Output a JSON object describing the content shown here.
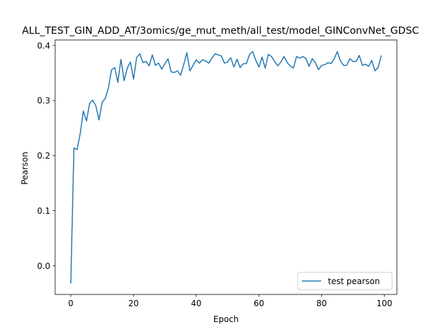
{
  "chart_data": {
    "type": "line",
    "title": "ALL_TEST_GIN_ADD_AT/3omics/ge_mut_meth/all_test/model_GINConvNet_GDSC",
    "xlabel": "Epoch",
    "ylabel": "Pearson",
    "xlim": [
      -5,
      104
    ],
    "ylim": [
      -0.052,
      0.41
    ],
    "xticks": [
      0,
      20,
      40,
      60,
      80,
      100
    ],
    "xtick_labels": [
      "0",
      "20",
      "40",
      "60",
      "80",
      "100"
    ],
    "yticks": [
      0.0,
      0.1,
      0.2,
      0.3,
      0.4
    ],
    "ytick_labels": [
      "0.0",
      "0.1",
      "0.2",
      "0.3",
      "0.4"
    ],
    "grid": false,
    "legend_position": "lower-right",
    "series": [
      {
        "name": "test pearson",
        "color": "#1f77b4",
        "x": [
          0,
          1,
          2,
          3,
          4,
          5,
          6,
          7,
          8,
          9,
          10,
          11,
          12,
          13,
          14,
          15,
          16,
          17,
          18,
          19,
          20,
          21,
          22,
          23,
          24,
          25,
          26,
          27,
          28,
          29,
          30,
          31,
          32,
          33,
          34,
          35,
          36,
          37,
          38,
          39,
          40,
          41,
          42,
          43,
          44,
          45,
          46,
          47,
          48,
          49,
          50,
          51,
          52,
          53,
          54,
          55,
          56,
          57,
          58,
          59,
          60,
          61,
          62,
          63,
          64,
          65,
          66,
          67,
          68,
          69,
          70,
          71,
          72,
          73,
          74,
          75,
          76,
          77,
          78,
          79,
          80,
          81,
          82,
          83,
          84,
          85,
          86,
          87,
          88,
          89,
          90,
          91,
          92,
          93,
          94,
          95,
          96,
          97,
          98,
          99
        ],
        "values": [
          -0.031,
          0.214,
          0.211,
          0.24,
          0.281,
          0.263,
          0.295,
          0.301,
          0.29,
          0.265,
          0.297,
          0.304,
          0.323,
          0.356,
          0.36,
          0.333,
          0.375,
          0.336,
          0.359,
          0.37,
          0.339,
          0.378,
          0.385,
          0.369,
          0.371,
          0.363,
          0.383,
          0.364,
          0.368,
          0.357,
          0.367,
          0.376,
          0.352,
          0.351,
          0.354,
          0.346,
          0.365,
          0.387,
          0.354,
          0.364,
          0.374,
          0.368,
          0.374,
          0.372,
          0.368,
          0.377,
          0.385,
          0.383,
          0.381,
          0.368,
          0.37,
          0.378,
          0.361,
          0.375,
          0.36,
          0.367,
          0.367,
          0.384,
          0.389,
          0.373,
          0.361,
          0.379,
          0.359,
          0.384,
          0.38,
          0.371,
          0.363,
          0.37,
          0.38,
          0.369,
          0.363,
          0.359,
          0.38,
          0.377,
          0.38,
          0.376,
          0.362,
          0.376,
          0.369,
          0.356,
          0.364,
          0.365,
          0.369,
          0.367,
          0.376,
          0.389,
          0.372,
          0.364,
          0.364,
          0.376,
          0.371,
          0.371,
          0.382,
          0.364,
          0.366,
          0.362,
          0.373,
          0.354,
          0.36,
          0.381
        ]
      }
    ]
  }
}
